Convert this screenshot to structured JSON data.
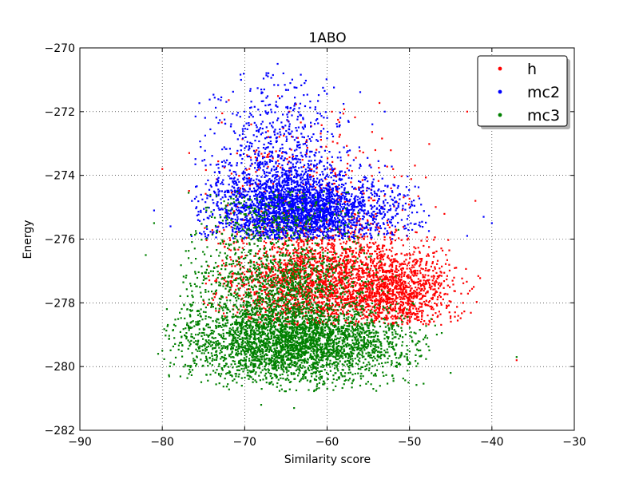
{
  "chart_data": {
    "type": "scatter",
    "title": "1ABO",
    "xlabel": "Similarity score",
    "ylabel": "Energy",
    "xlim": [
      -90,
      -30
    ],
    "ylim": [
      -282,
      -270
    ],
    "x_ticks": [
      -90,
      -80,
      -70,
      -60,
      -50,
      -40,
      -30
    ],
    "y_ticks": [
      -282,
      -280,
      -278,
      -276,
      -274,
      -272,
      -270
    ],
    "x_tick_labels": [
      "−90",
      "−80",
      "−70",
      "−60",
      "−50",
      "−40",
      "−30"
    ],
    "y_tick_labels": [
      "−282",
      "−280",
      "−278",
      "−276",
      "−274",
      "−272",
      "−270"
    ],
    "grid": true,
    "legend_position": "top-right",
    "series": [
      {
        "name": "h",
        "color": "#ff0000",
        "clusters": [
          {
            "center": [
              -60,
              -277.3
            ],
            "spread": [
              6.5,
              0.9
            ],
            "count": 2600,
            "x_range": [
              -75,
              -45
            ],
            "y_range": [
              -278.7,
              -274.5
            ]
          },
          {
            "center": [
              -51,
              -277.8
            ],
            "spread": [
              3.5,
              0.6
            ],
            "count": 800,
            "x_range": [
              -58,
              -41
            ],
            "y_range": [
              -278.7,
              -276
            ]
          },
          {
            "center": [
              -62,
              -274.2
            ],
            "spread": [
              6,
              1.3
            ],
            "count": 300,
            "x_range": [
              -80,
              -45
            ],
            "y_range": [
              -276,
              -271.5
            ]
          }
        ],
        "points": [
          [
            -43,
            -272
          ],
          [
            -80,
            -273.8
          ],
          [
            -42,
            -274.8
          ],
          [
            -37,
            -279.8
          ],
          [
            -54.5,
            -275
          ],
          [
            -42.2,
            -277.5
          ]
        ]
      },
      {
        "name": "mc2",
        "color": "#0000ff",
        "clusters": [
          {
            "center": [
              -64,
              -275.1
            ],
            "spread": [
              5,
              0.65
            ],
            "count": 2700,
            "x_range": [
              -77,
              -48
            ],
            "y_range": [
              -276,
              -273.2
            ]
          },
          {
            "center": [
              -66,
              -273.3
            ],
            "spread": [
              4,
              1.2
            ],
            "count": 700,
            "x_range": [
              -76,
              -52
            ],
            "y_range": [
              -274.5,
              -270.6
            ]
          },
          {
            "center": [
              -55,
              -275.2
            ],
            "spread": [
              5,
              0.5
            ],
            "count": 300,
            "x_range": [
              -62,
              -47
            ],
            "y_range": [
              -276,
              -274.3
            ]
          }
        ],
        "points": [
          [
            -66,
            -270.5
          ],
          [
            -65.3,
            -270.8
          ],
          [
            -81,
            -275.1
          ],
          [
            -79,
            -275.6
          ],
          [
            -41,
            -275.3
          ],
          [
            -43,
            -275.9
          ],
          [
            -40,
            -275.5
          ],
          [
            -53,
            -272
          ]
        ]
      },
      {
        "name": "mc3",
        "color": "#008000",
        "clusters": [
          {
            "center": [
              -64,
              -279.3
            ],
            "spread": [
              6.5,
              0.6
            ],
            "count": 3200,
            "x_range": [
              -80,
              -45
            ],
            "y_range": [
              -280.8,
              -278
            ]
          },
          {
            "center": [
              -66,
              -277.6
            ],
            "spread": [
              5.5,
              1.0
            ],
            "count": 1500,
            "x_range": [
              -78,
              -50
            ],
            "y_range": [
              -278.8,
              -275.5
            ]
          },
          {
            "center": [
              -67,
              -275.2
            ],
            "spread": [
              5,
              0.6
            ],
            "count": 300,
            "x_range": [
              -77,
              -55
            ],
            "y_range": [
              -276,
              -274.5
            ]
          }
        ],
        "points": [
          [
            -81,
            -275.5
          ],
          [
            -82,
            -276.5
          ],
          [
            -80,
            -279.5
          ],
          [
            -80.5,
            -279.6
          ],
          [
            -37,
            -279.7
          ],
          [
            -45,
            -280.2
          ],
          [
            -68,
            -281.2
          ],
          [
            -64,
            -281.3
          ]
        ]
      }
    ]
  }
}
